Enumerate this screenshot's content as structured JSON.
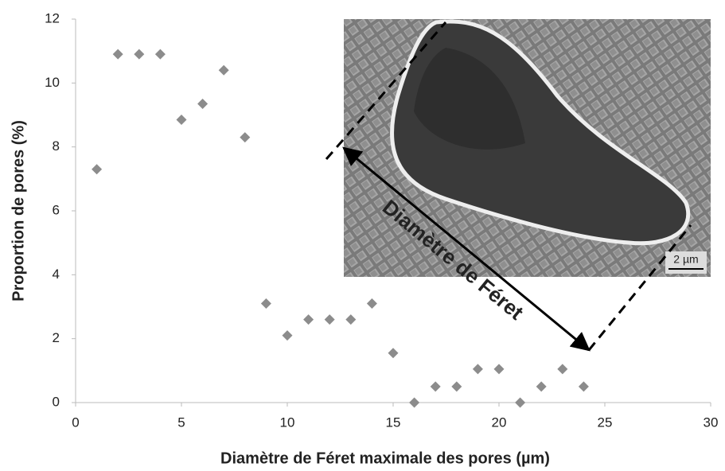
{
  "chart_data": {
    "type": "scatter",
    "xlabel": "Diamètre de Féret maximale des pores (µm)",
    "ylabel": "Proportion de pores (%)",
    "x": [
      1,
      2,
      3,
      4,
      5,
      6,
      7,
      8,
      9,
      10,
      11,
      12,
      13,
      14,
      15,
      16,
      17,
      18,
      19,
      20,
      21,
      22,
      23,
      24
    ],
    "values": [
      7.3,
      10.9,
      10.9,
      10.9,
      8.85,
      9.35,
      10.4,
      8.3,
      3.1,
      2.1,
      2.6,
      2.6,
      2.6,
      3.1,
      1.55,
      0,
      0.5,
      0.5,
      1.05,
      1.05,
      0,
      0.5,
      1.05,
      0.5
    ],
    "color": "#8c8c8c",
    "xlim": [
      0,
      30
    ],
    "xticks": [
      0,
      5,
      10,
      15,
      20,
      25,
      30
    ],
    "ylim": [
      0,
      12
    ],
    "yticks": [
      0,
      2,
      4,
      6,
      8,
      10,
      12
    ],
    "annotations": [
      "Diamètre de Féret",
      "2 µm"
    ]
  }
}
